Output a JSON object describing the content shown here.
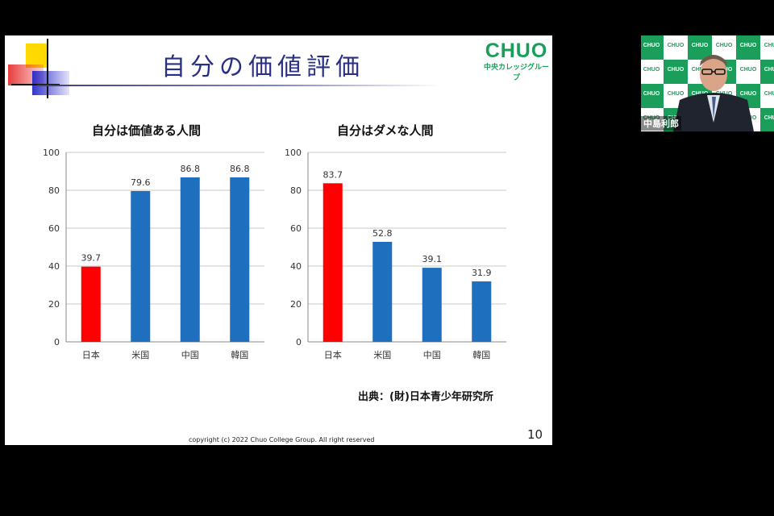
{
  "slide": {
    "title": "自分の価値評価",
    "logo_main": "CHUO",
    "logo_sub": "中央カレッジグループ",
    "source": "出典：(財)日本青少年研究所",
    "copyright": "copyright (c) 2022 Chuo College Group. All right reserved",
    "page_number": "10"
  },
  "chart_data": [
    {
      "type": "bar",
      "title": "自分は価値ある人間",
      "categories": [
        "日本",
        "米国",
        "中国",
        "韓国"
      ],
      "values": [
        39.7,
        79.6,
        86.8,
        86.8
      ],
      "value_labels": [
        "39.7",
        "79.6",
        "86.8",
        "86.8"
      ],
      "ylim": [
        0,
        100
      ],
      "yticks": [
        "0",
        "20",
        "40",
        "60",
        "80",
        "100"
      ],
      "bar_colors": [
        "#ff0000",
        "#1f6fbf",
        "#1f6fbf",
        "#1f6fbf"
      ],
      "grid": true
    },
    {
      "type": "bar",
      "title": "自分はダメな人間",
      "categories": [
        "日本",
        "米国",
        "中国",
        "韓国"
      ],
      "values": [
        83.7,
        52.8,
        39.1,
        31.9
      ],
      "value_labels": [
        "83.7",
        "52.8",
        "39.1",
        "31.9"
      ],
      "ylim": [
        0,
        100
      ],
      "yticks": [
        "0",
        "20",
        "40",
        "60",
        "80",
        "100"
      ],
      "bar_colors": [
        "#ff0000",
        "#1f6fbf",
        "#1f6fbf",
        "#1f6fbf"
      ],
      "grid": true
    }
  ],
  "video": {
    "presenter_name": "中島利郎",
    "backdrop_logo": "CHUO",
    "tile_colors": [
      "#1c9e5b",
      "#ffffff"
    ]
  }
}
